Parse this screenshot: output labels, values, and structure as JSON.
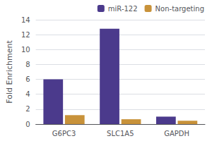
{
  "chart_data": {
    "type": "bar",
    "categories": [
      "G6PC3",
      "SLC1A5",
      "GAPDH"
    ],
    "series": [
      {
        "name": "miR-122",
        "color": "#4B3A8C",
        "values": [
          6.0,
          12.8,
          1.0
        ]
      },
      {
        "name": "Non-targeting",
        "color": "#C8923A",
        "values": [
          1.2,
          0.65,
          0.45
        ]
      }
    ],
    "ylabel": "Fold Enrichment",
    "ylim": [
      0,
      14
    ],
    "yticks": [
      0,
      2,
      4,
      6,
      8,
      10,
      12,
      14
    ],
    "grid": true,
    "legend": "upper right"
  }
}
